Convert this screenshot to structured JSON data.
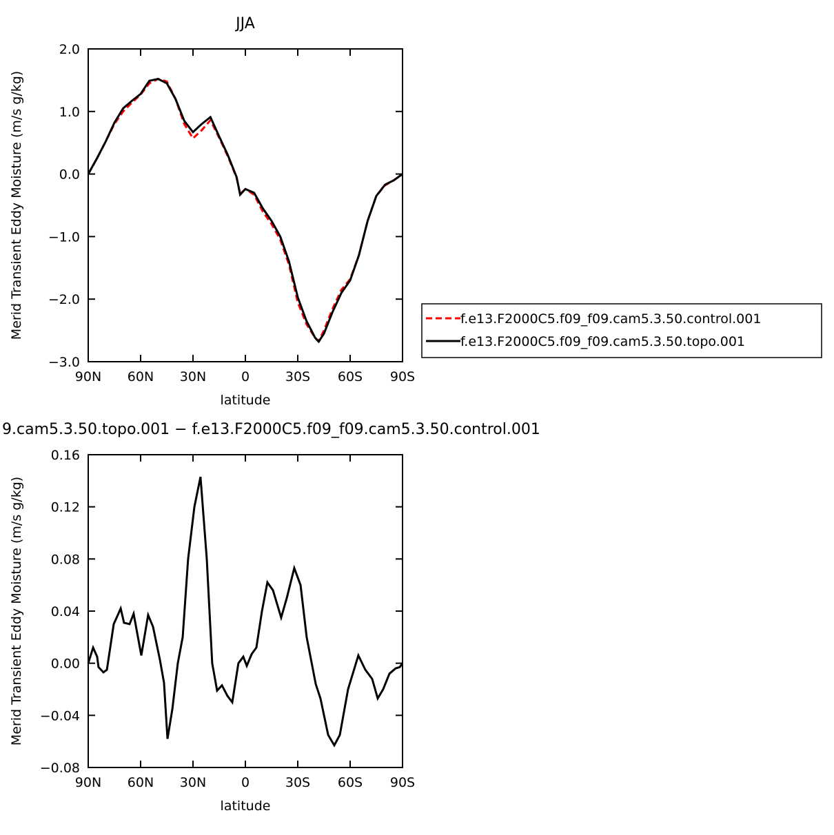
{
  "chart_data": [
    {
      "type": "line",
      "title": "JJA",
      "xlabel": "latitude",
      "ylabel": "Merid Transient Eddy Moisture (m/s g/kg)",
      "xlim": [
        90,
        -90
      ],
      "xticks": [
        {
          "value": 90,
          "label": "90N"
        },
        {
          "value": 60,
          "label": "60N"
        },
        {
          "value": 30,
          "label": "30N"
        },
        0,
        {
          "value": -30,
          "label": "30S"
        },
        {
          "value": -60,
          "label": "60S"
        },
        {
          "value": -90,
          "label": "90S"
        }
      ],
      "ylim": [
        -3,
        2
      ],
      "yticks": [
        {
          "value": -3,
          "label": "−3.0"
        },
        {
          "value": -2,
          "label": "−2.0"
        },
        {
          "value": -1,
          "label": "−1.0"
        },
        {
          "value": 0,
          "label": "0.0"
        },
        {
          "value": 1,
          "label": "1.0"
        },
        {
          "value": 2,
          "label": "2.0"
        }
      ],
      "legend": "right",
      "x": [
        90,
        85,
        80,
        75,
        70,
        65,
        60,
        55,
        50,
        45,
        40,
        35,
        30,
        25,
        20,
        15,
        10,
        5,
        3,
        0,
        -5,
        -10,
        -15,
        -20,
        -25,
        -30,
        -35,
        -40,
        -42,
        -45,
        -50,
        -55,
        -60,
        -65,
        -70,
        -75,
        -80,
        -85,
        -90
      ],
      "series": [
        {
          "name": "f.e13.F2000C5.f09_f09.cam5.3.50.control.001",
          "color": "#ff0000",
          "linestyle": "dashed",
          "values": [
            0,
            0.25,
            0.52,
            0.8,
            1.0,
            1.14,
            1.27,
            1.45,
            1.52,
            1.48,
            1.2,
            0.8,
            0.57,
            0.7,
            0.86,
            0.58,
            0.28,
            -0.06,
            -0.32,
            -0.24,
            -0.33,
            -0.6,
            -0.8,
            -1.05,
            -1.45,
            -2.05,
            -2.4,
            -2.62,
            -2.67,
            -2.5,
            -2.15,
            -1.85,
            -1.68,
            -1.3,
            -0.75,
            -0.35,
            -0.18,
            -0.1,
            0
          ]
        },
        {
          "name": "f.e13.F2000C5.f09_f09.cam5.3.50.topo.001",
          "color": "#000000",
          "linestyle": "solid",
          "values": [
            0,
            0.25,
            0.52,
            0.82,
            1.05,
            1.17,
            1.28,
            1.49,
            1.52,
            1.45,
            1.2,
            0.85,
            0.67,
            0.8,
            0.91,
            0.6,
            0.3,
            -0.05,
            -0.33,
            -0.24,
            -0.3,
            -0.55,
            -0.75,
            -1.0,
            -1.4,
            -1.97,
            -2.35,
            -2.62,
            -2.68,
            -2.55,
            -2.2,
            -1.9,
            -1.7,
            -1.3,
            -0.75,
            -0.35,
            -0.17,
            -0.1,
            0
          ]
        }
      ]
    },
    {
      "type": "line",
      "title": "9.cam5.3.50.topo.001 − f.e13.F2000C5.f09_f09.cam5.3.50.control.001",
      "xlabel": "latitude",
      "ylabel": "Merid Transient Eddy Moisture (m/s g/kg)",
      "xlim": [
        90,
        -90
      ],
      "xticks": [
        {
          "value": 90,
          "label": "90N"
        },
        {
          "value": 60,
          "label": "60N"
        },
        {
          "value": 30,
          "label": "30N"
        },
        0,
        {
          "value": -30,
          "label": "30S"
        },
        {
          "value": -60,
          "label": "60S"
        },
        {
          "value": -90,
          "label": "90S"
        }
      ],
      "ylim": [
        -0.08,
        0.16
      ],
      "yticks": [
        {
          "value": -0.08,
          "label": "−0.08"
        },
        {
          "value": -0.04,
          "label": "−0.04"
        },
        {
          "value": 0,
          "label": "0.00"
        },
        0.04,
        0.08,
        0.12,
        0.16
      ],
      "x": [
        90,
        87.2,
        84.9,
        84.1,
        81.3,
        79.3,
        75.4,
        71.4,
        69.5,
        66.3,
        64,
        59.6,
        55.7,
        52.9,
        49,
        46.6,
        44.6,
        41.8,
        38.7,
        35.9,
        32.8,
        29.2,
        25.7,
        22.1,
        19,
        16.2,
        13.4,
        10.3,
        7.5,
        4,
        1.2,
        -0.8,
        -3.6,
        -6.3,
        -9.5,
        -12.6,
        -15.8,
        -20.5,
        -23.7,
        -28,
        -31.6,
        -35.1,
        -40.3,
        -43,
        -47.4,
        -50.9,
        -54.1,
        -58.8,
        -64.7,
        -68.7,
        -72.6,
        -75.8,
        -78.9,
        -82.5,
        -86,
        -88.4,
        -90
      ],
      "series": [
        {
          "color": "#000000",
          "linestyle": "solid",
          "values": [
            0,
            0.012,
            0.005,
            -0.003,
            -0.007,
            -0.005,
            0.03,
            0.042,
            0.031,
            0.03,
            0.038,
            0.006,
            0.037,
            0.028,
            0.003,
            -0.015,
            -0.058,
            -0.035,
            0,
            0.02,
            0.08,
            0.12,
            0.143,
            0.08,
            0,
            -0.021,
            -0.017,
            -0.025,
            -0.03,
            0,
            0.005,
            -0.002,
            0.007,
            0.012,
            0.04,
            0.062,
            0.056,
            0.035,
            0.05,
            0.073,
            0.06,
            0.02,
            -0.016,
            -0.027,
            -0.055,
            -0.063,
            -0.055,
            -0.02,
            0.006,
            -0.005,
            -0.012,
            -0.027,
            -0.02,
            -0.008,
            -0.004,
            -0.003,
            0
          ]
        }
      ]
    }
  ]
}
